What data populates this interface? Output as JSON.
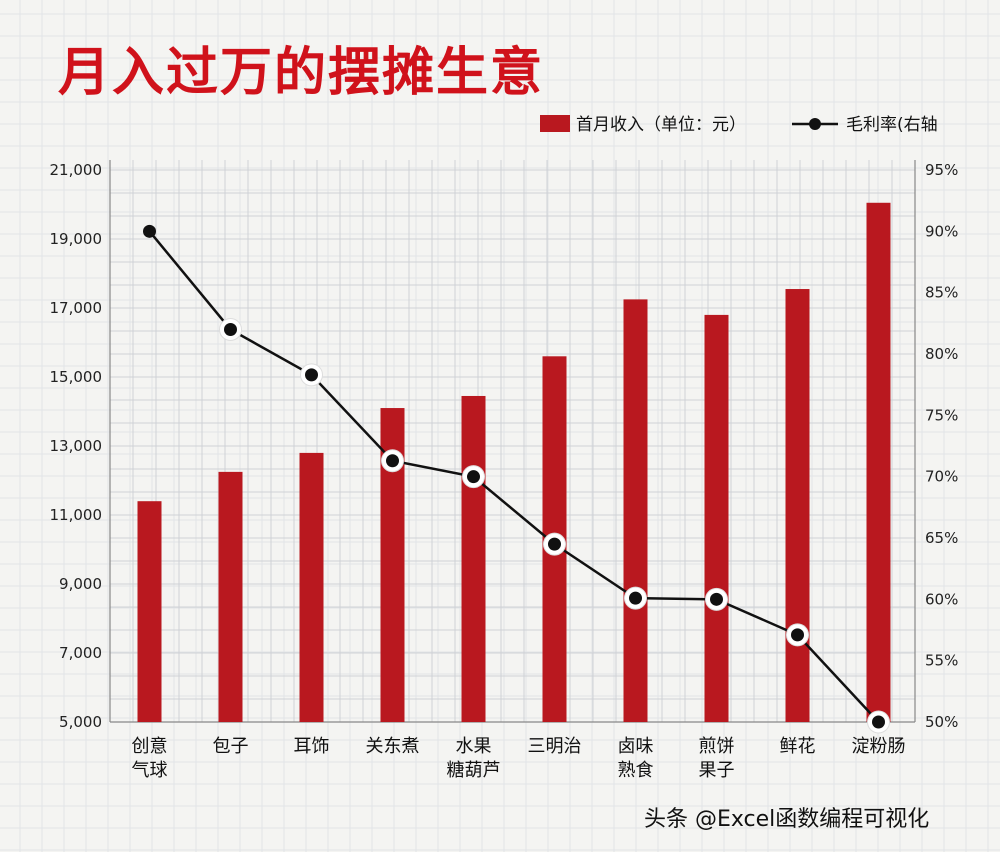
{
  "colors": {
    "bar": "#b9181f",
    "line": "#111111",
    "title": "#d0121b",
    "grid": "#cfd2d6",
    "point_fill": "#111111",
    "point_ring": "#ffffff"
  },
  "chart_data": {
    "type": "bar+line",
    "title": "月入过万的摆摊生意",
    "legend": {
      "bar_label": "首月收入（单位：元）",
      "line_label": "毛利率(右轴",
      "placement": "top-right"
    },
    "categories": [
      [
        "创意",
        "气球"
      ],
      [
        "包子"
      ],
      [
        "耳饰"
      ],
      [
        "关东煮"
      ],
      [
        "水果",
        "糖葫芦"
      ],
      [
        "三明治"
      ],
      [
        "卤味",
        "熟食"
      ],
      [
        "煎饼",
        "果子"
      ],
      [
        "鲜花"
      ],
      [
        "淀粉肠"
      ]
    ],
    "series": [
      {
        "name": "首月收入（单位：元）",
        "type": "bar",
        "axis": "left",
        "values": [
          11400,
          12250,
          12800,
          14100,
          14450,
          15600,
          17250,
          16800,
          17550,
          20050
        ]
      },
      {
        "name": "毛利率(右轴",
        "type": "line",
        "axis": "right",
        "values": [
          90,
          82,
          78.3,
          71.3,
          70,
          64.5,
          60.1,
          60,
          57.1,
          50
        ]
      }
    ],
    "y_left": {
      "ylim": [
        5000,
        21000
      ],
      "ticks": [
        "5,000",
        "7,000",
        "9,000",
        "11,000",
        "13,000",
        "15,000",
        "17,000",
        "19,000",
        "21,000"
      ]
    },
    "y_right": {
      "ylim": [
        50,
        95
      ],
      "ticks": [
        "50%",
        "55%",
        "60%",
        "65%",
        "70%",
        "75%",
        "80%",
        "85%",
        "90%",
        "95%"
      ]
    },
    "grid": true
  },
  "watermark": "头条 @Excel函数编程可视化"
}
